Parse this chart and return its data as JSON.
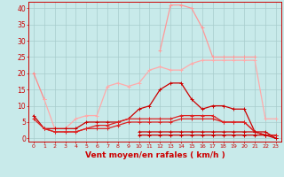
{
  "xlabel": "Vent moyen/en rafales ( km/h )",
  "background_color": "#c8eaea",
  "grid_color": "#a8cccc",
  "x": [
    0,
    1,
    2,
    3,
    4,
    5,
    6,
    7,
    8,
    9,
    10,
    11,
    12,
    13,
    14,
    15,
    16,
    17,
    18,
    19,
    20,
    21,
    22,
    23
  ],
  "ylim": [
    -1,
    42
  ],
  "xlim": [
    -0.5,
    23.5
  ],
  "yticks": [
    0,
    5,
    10,
    15,
    20,
    25,
    30,
    35,
    40
  ],
  "series": [
    {
      "y": [
        20,
        12,
        null,
        null,
        null,
        null,
        null,
        null,
        null,
        null,
        null,
        null,
        null,
        null,
        null,
        null,
        null,
        null,
        null,
        null,
        null,
        null,
        null,
        null
      ],
      "color": "#ff8888",
      "lw": 0.9
    },
    {
      "y": [
        null,
        12,
        3,
        3,
        6,
        7,
        7,
        16,
        17,
        16,
        17,
        21,
        22,
        21,
        21,
        23,
        24,
        24,
        24,
        24,
        24,
        24,
        6,
        6
      ],
      "color": "#ffaaaa",
      "lw": 0.9
    },
    {
      "y": [
        null,
        null,
        null,
        null,
        null,
        null,
        null,
        null,
        null,
        null,
        null,
        null,
        27,
        41,
        41,
        40,
        34,
        25,
        25,
        25,
        25,
        25,
        null,
        null
      ],
      "color": "#ff9999",
      "lw": 0.9
    },
    {
      "y": [
        7,
        3,
        3,
        3,
        3,
        5,
        5,
        5,
        5,
        6,
        9,
        10,
        15,
        17,
        17,
        12,
        9,
        10,
        10,
        9,
        9,
        2,
        1,
        1
      ],
      "color": "#cc0000",
      "lw": 0.9
    },
    {
      "y": [
        6,
        3,
        2,
        2,
        2,
        3,
        4,
        4,
        5,
        6,
        6,
        6,
        6,
        6,
        7,
        7,
        7,
        7,
        5,
        5,
        5,
        2,
        1,
        1
      ],
      "color": "#dd2222",
      "lw": 0.9
    },
    {
      "y": [
        null,
        3,
        2,
        2,
        2,
        3,
        3,
        3,
        4,
        5,
        5,
        5,
        5,
        5,
        6,
        6,
        6,
        6,
        5,
        5,
        5,
        2,
        1,
        1
      ],
      "color": "#dd2222",
      "lw": 0.9
    },
    {
      "y": [
        null,
        null,
        null,
        null,
        null,
        null,
        null,
        null,
        null,
        null,
        2,
        2,
        2,
        2,
        2,
        2,
        2,
        2,
        2,
        2,
        2,
        2,
        2,
        0
      ],
      "color": "#cc0000",
      "lw": 0.9
    },
    {
      "y": [
        null,
        null,
        null,
        null,
        null,
        null,
        null,
        null,
        null,
        null,
        1,
        1,
        1,
        1,
        1,
        1,
        1,
        1,
        1,
        1,
        1,
        1,
        1,
        0
      ],
      "color": "#cc0000",
      "lw": 0.9
    }
  ]
}
